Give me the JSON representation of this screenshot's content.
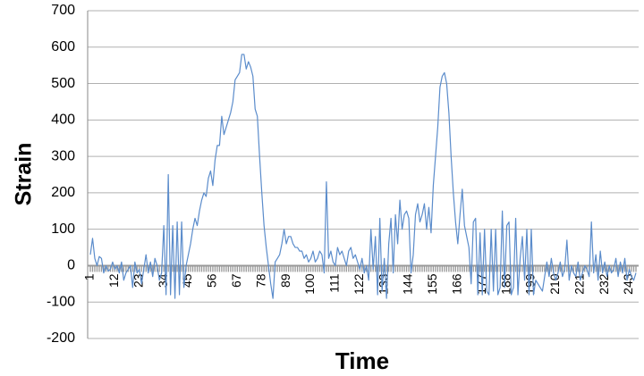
{
  "chart_data": {
    "type": "line",
    "x_label": "Time",
    "y_label": "Strain",
    "x": [
      1,
      2,
      3,
      4,
      5,
      6,
      7,
      8,
      9,
      10,
      11,
      12,
      13,
      14,
      15,
      16,
      17,
      18,
      19,
      20,
      21,
      22,
      23,
      24,
      25,
      26,
      27,
      28,
      29,
      30,
      31,
      32,
      33,
      34,
      35,
      36,
      37,
      38,
      39,
      40,
      41,
      42,
      43,
      44,
      45,
      46,
      47,
      48,
      49,
      50,
      51,
      52,
      53,
      54,
      55,
      56,
      57,
      58,
      59,
      60,
      61,
      62,
      63,
      64,
      65,
      66,
      67,
      68,
      69,
      70,
      71,
      72,
      73,
      74,
      75,
      76,
      77,
      78,
      79,
      80,
      81,
      82,
      83,
      84,
      85,
      86,
      87,
      88,
      89,
      90,
      91,
      92,
      93,
      94,
      95,
      96,
      97,
      98,
      99,
      100,
      101,
      102,
      103,
      104,
      105,
      106,
      107,
      108,
      109,
      110,
      111,
      112,
      113,
      114,
      115,
      116,
      117,
      118,
      119,
      120,
      121,
      122,
      123,
      124,
      125,
      126,
      127,
      128,
      129,
      130,
      131,
      132,
      133,
      134,
      135,
      136,
      137,
      138,
      139,
      140,
      141,
      142,
      143,
      144,
      145,
      146,
      147,
      148,
      149,
      150,
      151,
      152,
      153,
      154,
      155,
      156,
      157,
      158,
      159,
      160,
      161,
      162,
      163,
      164,
      165,
      166,
      167,
      168,
      169,
      170,
      171,
      172,
      173,
      174,
      175,
      176,
      177,
      178,
      179,
      180,
      181,
      182,
      183,
      184,
      185,
      186,
      187,
      188,
      189,
      190,
      191,
      192,
      193,
      194,
      195,
      196,
      197,
      198,
      199,
      200,
      201,
      202,
      203,
      204,
      205,
      206,
      207,
      208,
      209,
      210,
      211,
      212,
      213,
      214,
      215,
      216,
      217,
      218,
      219,
      220,
      221,
      222,
      223,
      224,
      225,
      226,
      227,
      228,
      229,
      230,
      231,
      232,
      233,
      234,
      235,
      236,
      237,
      238,
      239,
      240,
      241,
      242,
      243,
      244,
      245,
      246
    ],
    "series": [
      {
        "name": "Strain",
        "color": "#5b8ccb",
        "values": [
          30,
          75,
          20,
          0,
          25,
          20,
          -20,
          0,
          -15,
          -10,
          10,
          -10,
          0,
          -20,
          10,
          -40,
          -20,
          -10,
          0,
          -60,
          10,
          -20,
          -10,
          -50,
          -10,
          30,
          -20,
          10,
          -30,
          20,
          0,
          -40,
          -20,
          110,
          -80,
          250,
          -80,
          110,
          -90,
          120,
          -80,
          120,
          -60,
          0,
          30,
          60,
          100,
          130,
          110,
          150,
          180,
          200,
          190,
          240,
          260,
          220,
          290,
          330,
          330,
          410,
          360,
          380,
          400,
          420,
          450,
          510,
          520,
          530,
          580,
          580,
          540,
          560,
          545,
          520,
          430,
          410,
          300,
          200,
          110,
          50,
          0,
          -50,
          -90,
          10,
          20,
          30,
          60,
          100,
          60,
          80,
          80,
          60,
          50,
          50,
          40,
          40,
          20,
          30,
          10,
          20,
          40,
          10,
          20,
          40,
          30,
          -20,
          230,
          20,
          40,
          10,
          0,
          50,
          30,
          40,
          20,
          0,
          40,
          50,
          20,
          30,
          10,
          -10,
          20,
          -20,
          0,
          -40,
          100,
          -10,
          80,
          -80,
          130,
          -70,
          20,
          -90,
          60,
          130,
          -20,
          140,
          60,
          180,
          100,
          140,
          150,
          130,
          -20,
          30,
          140,
          170,
          120,
          140,
          170,
          100,
          160,
          90,
          220,
          300,
          380,
          490,
          520,
          530,
          500,
          420,
          300,
          200,
          120,
          60,
          140,
          210,
          110,
          80,
          50,
          -50,
          120,
          130,
          -80,
          90,
          -80,
          100,
          -70,
          -80,
          100,
          -70,
          100,
          -80,
          -60,
          150,
          -60,
          110,
          120,
          -80,
          -60,
          130,
          -80,
          20,
          80,
          -40,
          100,
          -80,
          100,
          -80,
          -40,
          -50,
          -60,
          -70,
          -30,
          10,
          -30,
          20,
          -20,
          -40,
          -20,
          10,
          -30,
          -10,
          70,
          -40,
          0,
          -20,
          -30,
          10,
          -40,
          -20,
          0,
          -10,
          -30,
          120,
          -20,
          30,
          -40,
          40,
          -20,
          10,
          -30,
          0,
          -20,
          -10,
          20,
          -30,
          10,
          -20,
          20,
          -40,
          -10,
          -30,
          -40,
          -20
        ]
      }
    ],
    "xlim": [
      1,
      246
    ],
    "xticks": [
      1,
      12,
      23,
      34,
      45,
      56,
      67,
      78,
      89,
      100,
      111,
      122,
      133,
      144,
      155,
      166,
      177,
      188,
      199,
      210,
      221,
      232,
      243
    ],
    "ylim": [
      -200,
      700
    ],
    "yticks": [
      -200,
      -100,
      0,
      100,
      200,
      300,
      400,
      500,
      600,
      700
    ],
    "grid": true
  }
}
